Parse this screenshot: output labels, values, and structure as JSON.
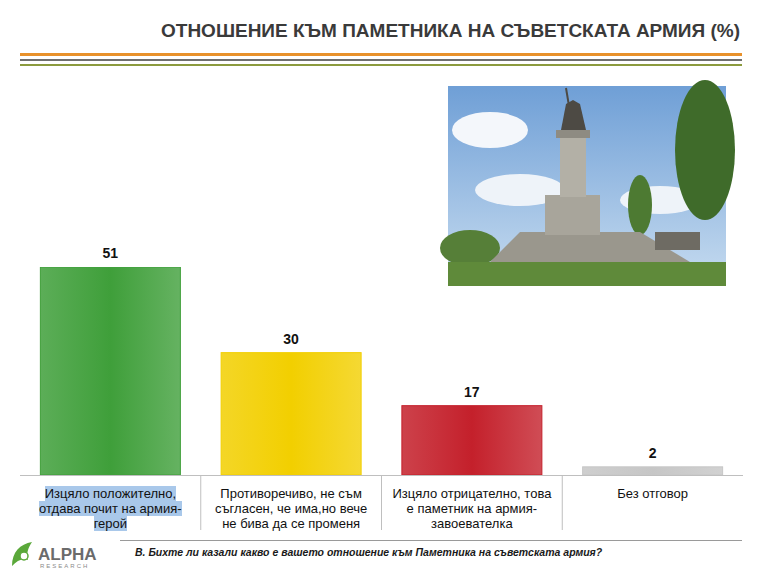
{
  "chart_data": {
    "type": "bar",
    "title": "ОТНОШЕНИЕ КЪМ ПАМЕТНИКА НА СЪВЕТСКАТА АРМИЯ (%)",
    "categories": [
      "Изцяло положително, отдава почит на армия-герой",
      "Противоречиво, не съм съгласен, че има,но вече не бива да се променя",
      "Изцяло отрицателно, това е паметник на армия-завоевателка",
      "Без отговор"
    ],
    "values": [
      51,
      30,
      17,
      2
    ],
    "colors": [
      "#3f9f3a",
      "#f2cf00",
      "#c4202b",
      "#c6c6c6"
    ],
    "ylim": [
      0,
      51
    ],
    "data_labels": true,
    "tick_labels": "x",
    "annotations": [
      "В. Бихте ли казали какво е вашето отношение към Паметника на съветската армия?",
      "ALPHA",
      "RESEARCH"
    ]
  }
}
